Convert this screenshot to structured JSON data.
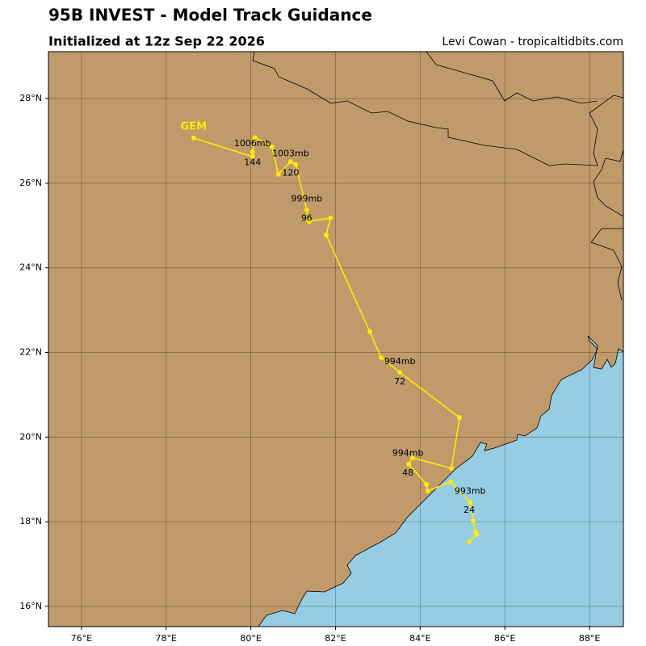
{
  "chart_data": {
    "type": "track",
    "title": "95B INVEST - Model Track Guidance",
    "subtitle": "Initialized at 12z Sep 22 2026",
    "credit": "Levi Cowan - tropicaltidbits.com",
    "xlim": [
      75.22,
      88.8
    ],
    "ylim": [
      15.52,
      29.11
    ],
    "xticks": [
      {
        "value": 76,
        "label": "76°E"
      },
      {
        "value": 78,
        "label": "78°E"
      },
      {
        "value": 80,
        "label": "80°E"
      },
      {
        "value": 82,
        "label": "82°E"
      },
      {
        "value": 84,
        "label": "84°E"
      },
      {
        "value": 86,
        "label": "86°E"
      },
      {
        "value": 88,
        "label": "88°E"
      }
    ],
    "yticks": [
      {
        "value": 16,
        "label": "16°N"
      },
      {
        "value": 18,
        "label": "18°N"
      },
      {
        "value": 20,
        "label": "20°N"
      },
      {
        "value": 22,
        "label": "22°N"
      },
      {
        "value": 24,
        "label": "24°N"
      },
      {
        "value": 26,
        "label": "26°N"
      },
      {
        "value": 28,
        "label": "28°N"
      }
    ],
    "grid": true,
    "series": [
      {
        "name": "GEM",
        "color": "#ffea00",
        "x": [
          85.16,
          85.33,
          85.31,
          85.25,
          85.18,
          84.72,
          84.18,
          84.15,
          83.73,
          83.82,
          84.74,
          84.93,
          83.52,
          83.08,
          82.81,
          81.78,
          81.88,
          81.38,
          81.32,
          81.06,
          80.94,
          80.65,
          80.5,
          80.1,
          80.04,
          80.04,
          78.65
        ],
        "values": [
          17.53,
          17.7,
          17.76,
          18.02,
          18.46,
          18.94,
          18.73,
          18.88,
          19.36,
          19.51,
          19.26,
          20.46,
          21.53,
          21.88,
          22.49,
          24.78,
          25.18,
          25.1,
          25.37,
          26.44,
          26.51,
          26.21,
          26.86,
          27.08,
          26.74,
          26.63,
          27.07
        ]
      }
    ],
    "annotations": [
      {
        "text": "1006mb",
        "lon": 80.04,
        "lat": 26.93
      },
      {
        "text": "144",
        "lon": 80.04,
        "lat": 26.49
      },
      {
        "text": "1003mb",
        "lon": 80.94,
        "lat": 26.7
      },
      {
        "text": "120",
        "lon": 80.94,
        "lat": 26.24
      },
      {
        "text": "999mb",
        "lon": 81.32,
        "lat": 25.63
      },
      {
        "text": "96",
        "lon": 81.32,
        "lat": 25.17
      },
      {
        "text": "994mb",
        "lon": 83.52,
        "lat": 21.78
      },
      {
        "text": "72",
        "lon": 83.52,
        "lat": 21.3
      },
      {
        "text": "994mb",
        "lon": 83.71,
        "lat": 19.61
      },
      {
        "text": "48",
        "lon": 83.71,
        "lat": 19.15
      },
      {
        "text": "993mb",
        "lon": 85.18,
        "lat": 18.72
      },
      {
        "text": "24",
        "lon": 85.16,
        "lat": 18.27
      }
    ]
  }
}
